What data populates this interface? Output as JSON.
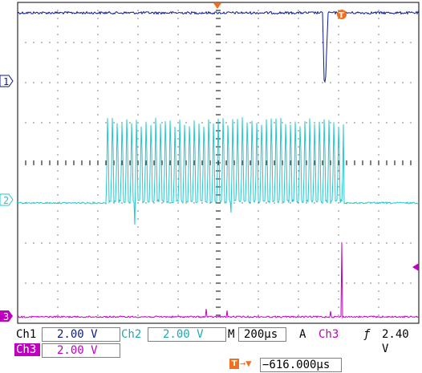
{
  "channels": {
    "ch1": {
      "label": "Ch1",
      "scale": "2.00 V",
      "marker": "1",
      "color": "#0a1a8c"
    },
    "ch2": {
      "label": "Ch2",
      "scale": "2.00 V",
      "marker": "2",
      "color": "#21c8d0"
    },
    "ch3": {
      "label": "Ch3",
      "scale": "2.00 V",
      "marker": "3",
      "color": "#c000c0"
    }
  },
  "timebase": {
    "label": "M",
    "value": "200µs"
  },
  "trigger": {
    "mode": "A",
    "source": "Ch3",
    "slope_symbol": "ƒ",
    "level": "2.40 V",
    "position": "−616.000µs",
    "trigger_marker": "T",
    "arrow": "→▼"
  },
  "colors": {
    "grid": "#000000",
    "panel_text": "#000000",
    "trigger_marker": "#f07020"
  }
}
